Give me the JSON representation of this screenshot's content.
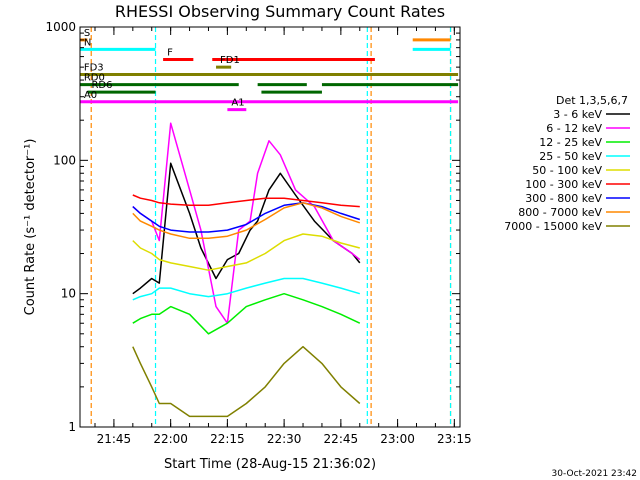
{
  "chart_data": {
    "type": "line",
    "title": "RHESSI Observing Summary Count Rates",
    "xlabel": "Start Time (28-Aug-15 21:36:02)",
    "ylabel": "Count Rate (s⁻¹ detector⁻¹)",
    "y_scale": "log",
    "ylim": [
      1,
      1000
    ],
    "xlim": [
      "21:36:02",
      "23:16:30"
    ],
    "x_ticks": [
      "21:45",
      "22:00",
      "22:15",
      "22:30",
      "22:45",
      "23:00",
      "23:15"
    ],
    "y_ticks": [
      "1",
      "10",
      "100",
      "1000"
    ],
    "legend_title": "Det 1,3,5,6,7",
    "legend_position": "right",
    "series": [
      {
        "name": "3 - 6 keV",
        "color": "#000000",
        "x": [
          "21:50",
          "21:52",
          "21:55",
          "21:57",
          "22:00",
          "22:05",
          "22:08",
          "22:12",
          "22:15",
          "22:18",
          "22:21",
          "22:23",
          "22:26",
          "22:29",
          "22:33",
          "22:38",
          "22:43",
          "22:48",
          "22:50"
        ],
        "y": [
          10,
          11,
          13,
          12,
          95,
          40,
          22,
          13,
          18,
          20,
          30,
          35,
          60,
          80,
          55,
          35,
          25,
          20,
          17
        ]
      },
      {
        "name": "6 - 12 keV",
        "color": "#ff00ff",
        "x": [
          "21:50",
          "21:52",
          "21:55",
          "21:57",
          "22:00",
          "22:05",
          "22:08",
          "22:12",
          "22:15",
          "22:18",
          "22:21",
          "22:23",
          "22:26",
          "22:29",
          "22:33",
          "22:38",
          "22:43",
          "22:48",
          "22:50"
        ],
        "y": [
          45,
          40,
          35,
          25,
          190,
          60,
          30,
          8,
          6,
          30,
          35,
          80,
          140,
          110,
          60,
          45,
          25,
          20,
          18
        ]
      },
      {
        "name": "12 - 25 keV",
        "color": "#00ee00",
        "x": [
          "21:50",
          "21:52",
          "21:55",
          "21:57",
          "22:00",
          "22:05",
          "22:10",
          "22:15",
          "22:20",
          "22:25",
          "22:30",
          "22:35",
          "22:40",
          "22:45",
          "22:50"
        ],
        "y": [
          6,
          6.5,
          7,
          7,
          8,
          7,
          5,
          6,
          8,
          9,
          10,
          9,
          8,
          7,
          6
        ]
      },
      {
        "name": "25 - 50 keV",
        "color": "#00ffff",
        "x": [
          "21:50",
          "21:52",
          "21:55",
          "21:57",
          "22:00",
          "22:05",
          "22:10",
          "22:15",
          "22:20",
          "22:25",
          "22:30",
          "22:35",
          "22:40",
          "22:45",
          "22:50"
        ],
        "y": [
          9,
          9.5,
          10,
          11,
          11,
          10,
          9.5,
          10,
          11,
          12,
          13,
          13,
          12,
          11,
          10
        ]
      },
      {
        "name": "50 - 100 keV",
        "color": "#dddd00",
        "x": [
          "21:50",
          "21:52",
          "21:55",
          "21:57",
          "22:00",
          "22:05",
          "22:10",
          "22:15",
          "22:20",
          "22:25",
          "22:30",
          "22:35",
          "22:40",
          "22:45",
          "22:50"
        ],
        "y": [
          25,
          22,
          20,
          18,
          17,
          16,
          15,
          16,
          17,
          20,
          25,
          28,
          27,
          24,
          22
        ]
      },
      {
        "name": "100 - 300 keV",
        "color": "#ff0000",
        "x": [
          "21:50",
          "21:52",
          "21:55",
          "21:57",
          "22:00",
          "22:05",
          "22:10",
          "22:15",
          "22:20",
          "22:25",
          "22:30",
          "22:35",
          "22:40",
          "22:45",
          "22:50"
        ],
        "y": [
          55,
          52,
          50,
          48,
          47,
          46,
          46,
          48,
          50,
          52,
          52,
          50,
          48,
          46,
          45
        ]
      },
      {
        "name": "300 - 800 keV",
        "color": "#0000ff",
        "x": [
          "21:50",
          "21:52",
          "21:55",
          "21:57",
          "22:00",
          "22:05",
          "22:10",
          "22:15",
          "22:20",
          "22:25",
          "22:30",
          "22:35",
          "22:40",
          "22:45",
          "22:50"
        ],
        "y": [
          45,
          40,
          35,
          32,
          30,
          29,
          29,
          30,
          33,
          40,
          46,
          48,
          45,
          40,
          36
        ]
      },
      {
        "name": "800 - 7000 keV",
        "color": "#ff8800",
        "x": [
          "21:50",
          "21:52",
          "21:55",
          "21:57",
          "22:00",
          "22:05",
          "22:10",
          "22:15",
          "22:20",
          "22:25",
          "22:30",
          "22:35",
          "22:40",
          "22:45",
          "22:50"
        ],
        "y": [
          40,
          35,
          32,
          30,
          28,
          26,
          26,
          27,
          30,
          36,
          44,
          48,
          44,
          38,
          34
        ]
      },
      {
        "name": "7000 - 15000 keV",
        "color": "#808000",
        "x": [
          "21:50",
          "21:52",
          "21:55",
          "21:57",
          "22:00",
          "22:05",
          "22:10",
          "22:15",
          "22:20",
          "22:25",
          "22:30",
          "22:35",
          "22:40",
          "22:45",
          "22:50"
        ],
        "y": [
          4,
          3,
          2,
          1.5,
          1.5,
          1.2,
          1.2,
          1.2,
          1.5,
          2,
          3,
          4,
          3,
          2,
          1.5
        ]
      }
    ],
    "state_bars": [
      {
        "label": "S",
        "color": "#ff8800",
        "y": 800,
        "segments": [
          [
            "21:36",
            "21:38"
          ],
          [
            "23:04",
            "23:14"
          ]
        ]
      },
      {
        "label": "N",
        "color": "#00ffff",
        "y": 680,
        "segments": [
          [
            "21:36",
            "21:56"
          ],
          [
            "23:04",
            "23:14"
          ]
        ]
      },
      {
        "label": "F",
        "color": "#ff0000",
        "y": 570,
        "segments": [
          [
            "21:58",
            "22:06"
          ],
          [
            "22:11",
            "22:54"
          ]
        ]
      },
      {
        "label": "FD1",
        "color": "#808000",
        "y": 500,
        "segments": [
          [
            "22:12",
            "22:16"
          ]
        ]
      },
      {
        "label": "FD3",
        "color": "#808000",
        "y": 440,
        "segments": [
          [
            "21:36",
            "23:16"
          ]
        ]
      },
      {
        "label": "RD0",
        "color": "#006600",
        "y": 370,
        "segments": [
          [
            "21:36",
            "22:18"
          ],
          [
            "22:23",
            "22:36"
          ],
          [
            "22:40",
            "23:16"
          ]
        ]
      },
      {
        "label": "RD6",
        "color": "#006600",
        "y": 325,
        "segments": [
          [
            "21:38",
            "21:56"
          ],
          [
            "22:24",
            "22:40"
          ]
        ]
      },
      {
        "label": "A0",
        "color": "#ff00ff",
        "y": 275,
        "segments": [
          [
            "21:36",
            "23:16"
          ]
        ]
      },
      {
        "label": "A1",
        "color": "#ff00ff",
        "y": 240,
        "segments": [
          [
            "22:15",
            "22:20"
          ]
        ]
      }
    ],
    "vertical_markers": [
      {
        "color": "#ff8800",
        "x": "21:39"
      },
      {
        "color": "#00ffff",
        "x": "21:56"
      },
      {
        "color": "#00ffff",
        "x": "22:52"
      },
      {
        "color": "#ff8800",
        "x": "22:53"
      },
      {
        "color": "#ff8800",
        "x": "23:14"
      },
      {
        "color": "#00ffff",
        "x": "23:14"
      }
    ]
  },
  "footer": {
    "date_stamp": "30-Oct-2021 23:42"
  }
}
